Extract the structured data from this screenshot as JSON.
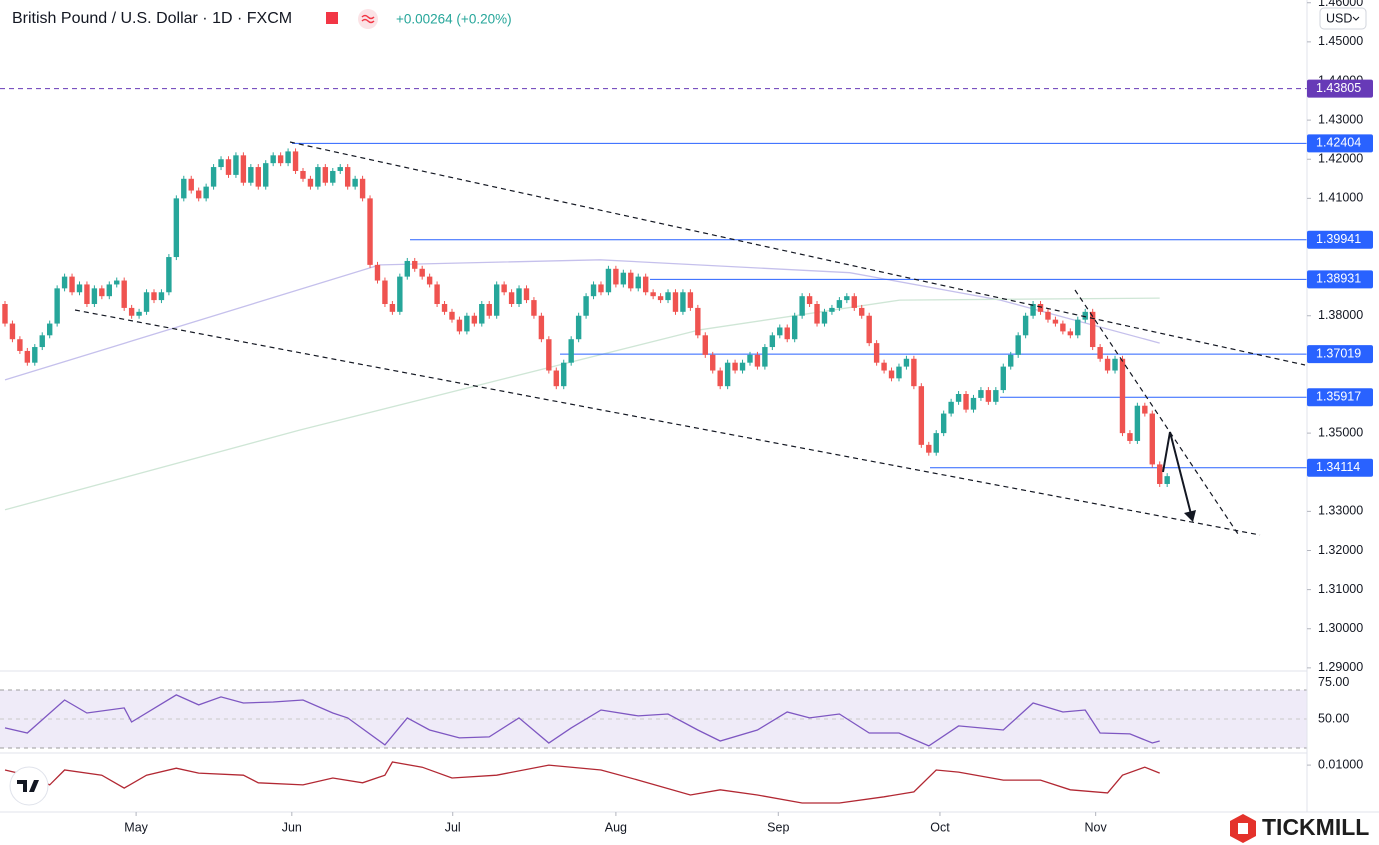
{
  "chart_data": {
    "type": "candlestick",
    "title": "British Pound / U.S. Dollar · 1D · FXCM",
    "change": "+0.00264 (+0.20%)",
    "currency": "USD",
    "brand": "TICKMILL",
    "up_color": "#26a69a",
    "down_color": "#ef5350",
    "open": 1.383,
    "values": [
      1.378,
      1.374,
      1.371,
      1.368,
      1.372,
      1.375,
      1.378,
      1.387,
      1.39,
      1.386,
      1.388,
      1.383,
      1.387,
      1.385,
      1.388,
      1.389,
      1.382,
      1.38,
      1.381,
      1.386,
      1.384,
      1.386,
      1.395,
      1.41,
      1.415,
      1.412,
      1.41,
      1.413,
      1.418,
      1.42,
      1.416,
      1.421,
      1.414,
      1.418,
      1.413,
      1.419,
      1.421,
      1.419,
      1.422,
      1.417,
      1.415,
      1.413,
      1.418,
      1.414,
      1.417,
      1.418,
      1.413,
      1.415,
      1.41,
      1.393,
      1.389,
      1.383,
      1.381,
      1.39,
      1.394,
      1.392,
      1.39,
      1.388,
      1.383,
      1.381,
      1.379,
      1.376,
      1.38,
      1.378,
      1.383,
      1.38,
      1.388,
      1.386,
      1.383,
      1.387,
      1.384,
      1.38,
      1.374,
      1.366,
      1.362,
      1.368,
      1.374,
      1.38,
      1.385,
      1.388,
      1.386,
      1.392,
      1.388,
      1.391,
      1.387,
      1.39,
      1.386,
      1.385,
      1.384,
      1.386,
      1.381,
      1.386,
      1.382,
      1.375,
      1.37,
      1.366,
      1.362,
      1.368,
      1.366,
      1.368,
      1.37,
      1.367,
      1.372,
      1.375,
      1.377,
      1.374,
      1.38,
      1.385,
      1.383,
      1.378,
      1.381,
      1.382,
      1.384,
      1.385,
      1.382,
      1.38,
      1.373,
      1.368,
      1.366,
      1.364,
      1.367,
      1.369,
      1.362,
      1.347,
      1.345,
      1.35,
      1.355,
      1.358,
      1.36,
      1.356,
      1.359,
      1.361,
      1.358,
      1.361,
      1.367,
      1.37,
      1.375,
      1.38,
      1.383,
      1.381,
      1.379,
      1.378,
      1.376,
      1.375,
      1.379,
      1.381,
      1.372,
      1.369,
      1.366,
      1.369,
      1.35,
      1.348,
      1.357,
      1.355,
      1.342,
      1.337,
      1.339
    ],
    "xlim": [
      -0.67,
      174.5
    ],
    "xticks": [
      {
        "value": 17.6,
        "label": "May"
      },
      {
        "value": 38.5,
        "label": "Jun"
      },
      {
        "value": 60.1,
        "label": "Jul"
      },
      {
        "value": 82,
        "label": "Aug"
      },
      {
        "value": 103.8,
        "label": "Sep"
      },
      {
        "value": 125.5,
        "label": "Oct"
      },
      {
        "value": 146.4,
        "label": "Nov"
      }
    ],
    "ylim": [
      1.2892,
      1.4607
    ],
    "yticks": [
      {
        "value": 1.46,
        "label": "1.46000"
      },
      {
        "value": 1.45,
        "label": "1.45000"
      },
      {
        "value": 1.44,
        "label": "1.44000"
      },
      {
        "value": 1.43,
        "label": "1.43000"
      },
      {
        "value": 1.42,
        "label": "1.42000"
      },
      {
        "value": 1.41,
        "label": "1.41000"
      },
      {
        "value": 1.4,
        "label": "1.40000"
      },
      {
        "value": 1.39,
        "label": "1.39000"
      },
      {
        "value": 1.38,
        "label": "1.38000"
      },
      {
        "value": 1.37,
        "label": "1.37000"
      },
      {
        "value": 1.36,
        "label": "1.36000"
      },
      {
        "value": 1.35,
        "label": "1.35000"
      },
      {
        "value": 1.34,
        "label": "1.34000"
      },
      {
        "value": 1.33,
        "label": "1.33000"
      },
      {
        "value": 1.32,
        "label": "1.32000"
      },
      {
        "value": 1.31,
        "label": "1.31000"
      },
      {
        "value": 1.3,
        "label": "1.30000"
      },
      {
        "value": 1.29,
        "label": "1.29000"
      }
    ],
    "levels": [
      {
        "value": 1.43805,
        "label": "1.43805",
        "color": "#673ab7",
        "style": "dashed"
      },
      {
        "value": 1.42404,
        "label": "1.42404",
        "color": "#2962ff",
        "style": "solid"
      },
      {
        "value": 1.39941,
        "label": "1.39941",
        "color": "#2962ff",
        "style": "solid"
      },
      {
        "value": 1.38931,
        "label": "1.38931",
        "color": "#2962ff",
        "style": "solid"
      },
      {
        "value": 1.37019,
        "label": "1.37019",
        "color": "#2962ff",
        "style": "solid"
      },
      {
        "value": 1.35917,
        "label": "1.35917",
        "color": "#2962ff",
        "style": "solid"
      },
      {
        "value": 1.34114,
        "label": "1.34114",
        "color": "#2962ff",
        "style": "solid"
      }
    ],
    "moving_averages": [
      {
        "color": "#c5c0ec",
        "x": [
          0,
          50.3,
          79.9,
          113.4,
          133.6,
          155
        ],
        "values": [
          1.3636,
          1.393,
          1.3943,
          1.391,
          1.384,
          1.373
        ]
      },
      {
        "color": "#cfe6d6",
        "x": [
          0,
          39.6,
          66.4,
          93.3,
          120.1,
          155
        ],
        "values": [
          1.3304,
          1.3508,
          1.3636,
          1.3764,
          1.384,
          1.3845
        ]
      }
    ],
    "rsi": {
      "color": "#7e57c2",
      "bands": [
        30,
        70
      ],
      "ylim": [
        27.2,
        82.4
      ],
      "yticks": [
        {
          "value": 75,
          "label": "75.00"
        },
        {
          "value": 50,
          "label": "50.00"
        }
      ],
      "x": [
        0,
        3,
        8,
        11,
        16,
        17,
        23,
        26,
        29,
        32,
        36,
        40,
        44,
        46,
        51,
        54,
        57,
        61,
        65,
        69,
        73,
        76,
        80,
        85,
        89,
        93,
        96,
        101,
        105,
        108,
        112,
        116,
        120,
        124,
        128,
        134,
        138,
        142,
        145,
        147,
        151,
        154,
        155
      ],
      "values": [
        43.8,
        40.3,
        63.1,
        54.1,
        57.6,
        47.9,
        66.6,
        59.7,
        65.2,
        61.0,
        61.7,
        63.1,
        54.1,
        50.7,
        32.1,
        50.7,
        42.4,
        36.9,
        37.6,
        50.7,
        33.4,
        43.8,
        56.2,
        52.1,
        53.4,
        42.4,
        34.8,
        42.4,
        54.8,
        50.7,
        53.4,
        40.3,
        40.3,
        31.4,
        45.2,
        42.4,
        61.0,
        54.8,
        56.2,
        40.3,
        39.7,
        33.4,
        34.8
      ]
    },
    "oscillator": {
      "color": "#b22833",
      "ylim": [
        -0.0029,
        0.0129
      ],
      "yticks": [
        {
          "value": 0.01,
          "label": "0.01000"
        }
      ],
      "x": [
        0,
        3,
        6,
        8,
        13,
        16,
        19,
        23,
        26,
        32,
        34,
        40,
        44,
        48,
        51,
        52,
        56,
        60,
        66,
        73,
        80,
        85,
        92,
        96,
        101,
        107,
        112,
        118,
        122,
        125,
        128,
        134,
        139,
        143,
        148,
        150,
        153,
        155
      ],
      "values": [
        0.0086,
        0.0071,
        0.0043,
        0.0086,
        0.0071,
        0.0034,
        0.0071,
        0.0091,
        0.0077,
        0.0071,
        0.0049,
        0.0043,
        0.0063,
        0.0049,
        0.0071,
        0.0109,
        0.0094,
        0.0063,
        0.0071,
        0.01,
        0.0086,
        0.0057,
        0.0014,
        0.0029,
        0.0014,
        -0.0009,
        -0.0009,
        0.0009,
        0.0023,
        0.0086,
        0.008,
        0.0057,
        0.0057,
        0.0029,
        0.002,
        0.0071,
        0.0094,
        0.0077
      ]
    }
  }
}
